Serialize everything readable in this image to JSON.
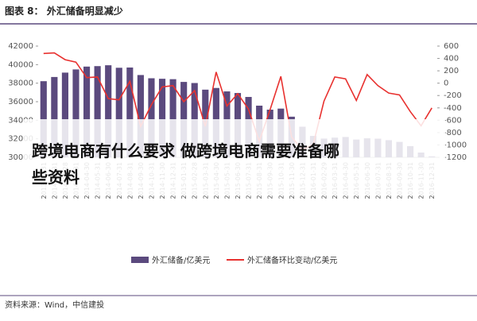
{
  "chart_data": {
    "type": "bar",
    "title": "图表 8： 外汇储备明显减少",
    "source": "资料来源：Wind，中信建投",
    "annotation": [
      "跨境电商有什么要求 做跨境电商需要准备哪",
      "些资料"
    ],
    "categories": [
      "2013-12-31",
      "2014-01-31",
      "2014-02-28",
      "2014-03-31",
      "2014-04-30",
      "2014-05-31",
      "2014-06-30",
      "2014-07-31",
      "2014-08-31",
      "2014-09-30",
      "2014-10-31",
      "2014-11-30",
      "2014-12-31",
      "2015-01-31",
      "2015-02-28",
      "2015-03-31",
      "2015-04-30",
      "2015-05-31",
      "2015-06-30",
      "2015-07-31",
      "2015-08-31",
      "2015-09-30",
      "2015-10-31",
      "2015-11-30",
      "2015-12-31",
      "2016-01-31",
      "2016-02-29",
      "2016-03-31",
      "2016-04-30",
      "2016-05-31",
      "2016-06-30",
      "2016-07-31",
      "2016-08-31",
      "2016-09-30",
      "2016-10-31",
      "2016-11-30",
      "2016-12-31"
    ],
    "series": [
      {
        "name": "外汇储备/亿美元",
        "color": "#5b4a7e",
        "axis": "y",
        "values": [
          38213,
          38666,
          39137,
          39481,
          39788,
          39839,
          39932,
          39661,
          39688,
          38877,
          38529,
          38473,
          38430,
          38134,
          38015,
          37300,
          37481,
          37111,
          36938,
          36513,
          35574,
          35141,
          35255,
          34383,
          33304,
          32309,
          32023,
          32126,
          32197,
          31917,
          32052,
          32011,
          31851,
          31664,
          31206,
          30516,
          30105
        ]
      },
      {
        "name": "外汇储备环比变动/亿美元",
        "color": "#e8312f",
        "axis": "y2",
        "values": [
          480,
          490,
          380,
          340,
          90,
          100,
          -250,
          -270,
          30,
          -700,
          -350,
          -60,
          -40,
          -300,
          -120,
          -700,
          180,
          -370,
          -170,
          -420,
          -940,
          -430,
          110,
          -870,
          -1080,
          -990,
          -290,
          100,
          70,
          -280,
          140,
          -40,
          -160,
          -190,
          -460,
          -690,
          -400
        ]
      }
    ],
    "ylim": [
      30000,
      42000
    ],
    "yticks": [
      30000,
      32000,
      34000,
      36000,
      38000,
      40000,
      42000
    ],
    "y2lim": [
      -1200,
      600
    ],
    "y2ticks": [
      -1200,
      -1000,
      -800,
      -600,
      -400,
      -200,
      0,
      200,
      400,
      600
    ]
  }
}
